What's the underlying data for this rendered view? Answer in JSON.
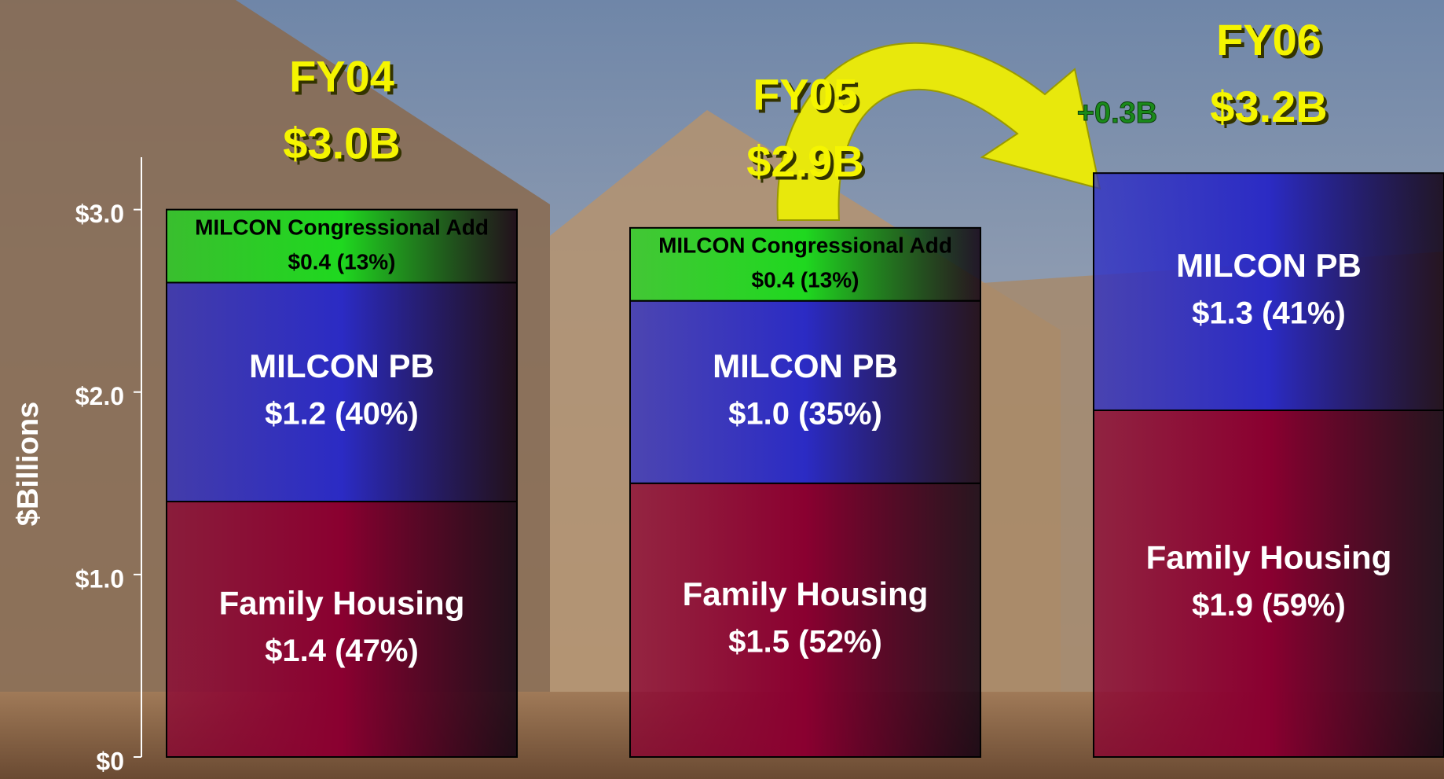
{
  "chart_data": {
    "type": "stacked_bar",
    "y_label": "$Billions",
    "categories": [
      "FY04",
      "FY05",
      "FY06"
    ],
    "totals": {
      "values": [
        3.0,
        2.9,
        3.2
      ],
      "value_labels": [
        "$3.0B",
        "$2.9B",
        "$3.2B"
      ]
    },
    "series": [
      {
        "name": "Family Housing",
        "color": "#8a0030",
        "text_color": "#ffffff",
        "values": [
          1.4,
          1.5,
          1.9
        ],
        "value_labels": [
          "$1.4 (47%)",
          "$1.5 (52%)",
          "$1.9 (59%)"
        ]
      },
      {
        "name": "MILCON PB",
        "color": "#2b2bc4",
        "text_color": "#ffffff",
        "values": [
          1.2,
          1.0,
          1.3
        ],
        "value_labels": [
          "$1.2 (40%)",
          "$1.0 (35%)",
          "$1.3 (41%)"
        ]
      },
      {
        "name": "MILCON Congressional Add",
        "color": "#1fd81f",
        "text_color": "#000000",
        "values": [
          0.4,
          0.4,
          null
        ],
        "value_labels": [
          "$0.4 (13%)",
          "$0.4 (13%)",
          null
        ]
      }
    ],
    "annotation": {
      "text": "+0.3B"
    },
    "ylim": [
      0,
      3.3
    ],
    "yticks": [
      {
        "value": 0,
        "label": "$0"
      },
      {
        "value": 1,
        "label": "$1.0"
      },
      {
        "value": 2,
        "label": "$2.0"
      },
      {
        "value": 3,
        "label": "$3.0"
      }
    ]
  }
}
